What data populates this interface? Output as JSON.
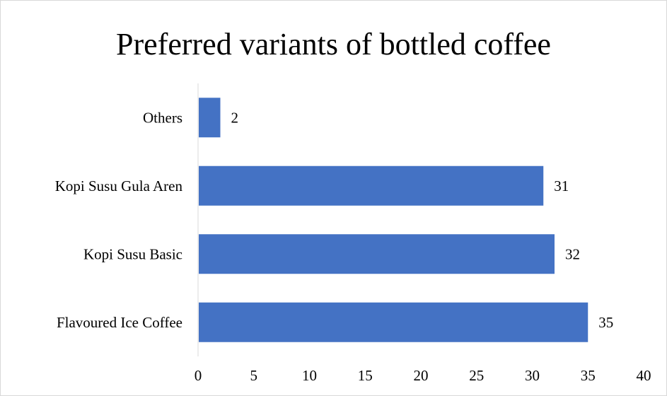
{
  "chart_data": {
    "type": "bar",
    "orientation": "horizontal",
    "title": "Preferred variants of bottled coffee",
    "categories": [
      "Flavoured Ice Coffee",
      "Kopi Susu Basic",
      "Kopi Susu Gula Aren",
      "Others"
    ],
    "values": [
      35,
      32,
      31,
      2
    ],
    "xlim": [
      0,
      40
    ],
    "xticks": [
      0,
      5,
      10,
      15,
      20,
      25,
      30,
      35,
      40
    ],
    "data_labels": true,
    "grid": false,
    "legend": "none",
    "bar_color": "#4472c4"
  }
}
